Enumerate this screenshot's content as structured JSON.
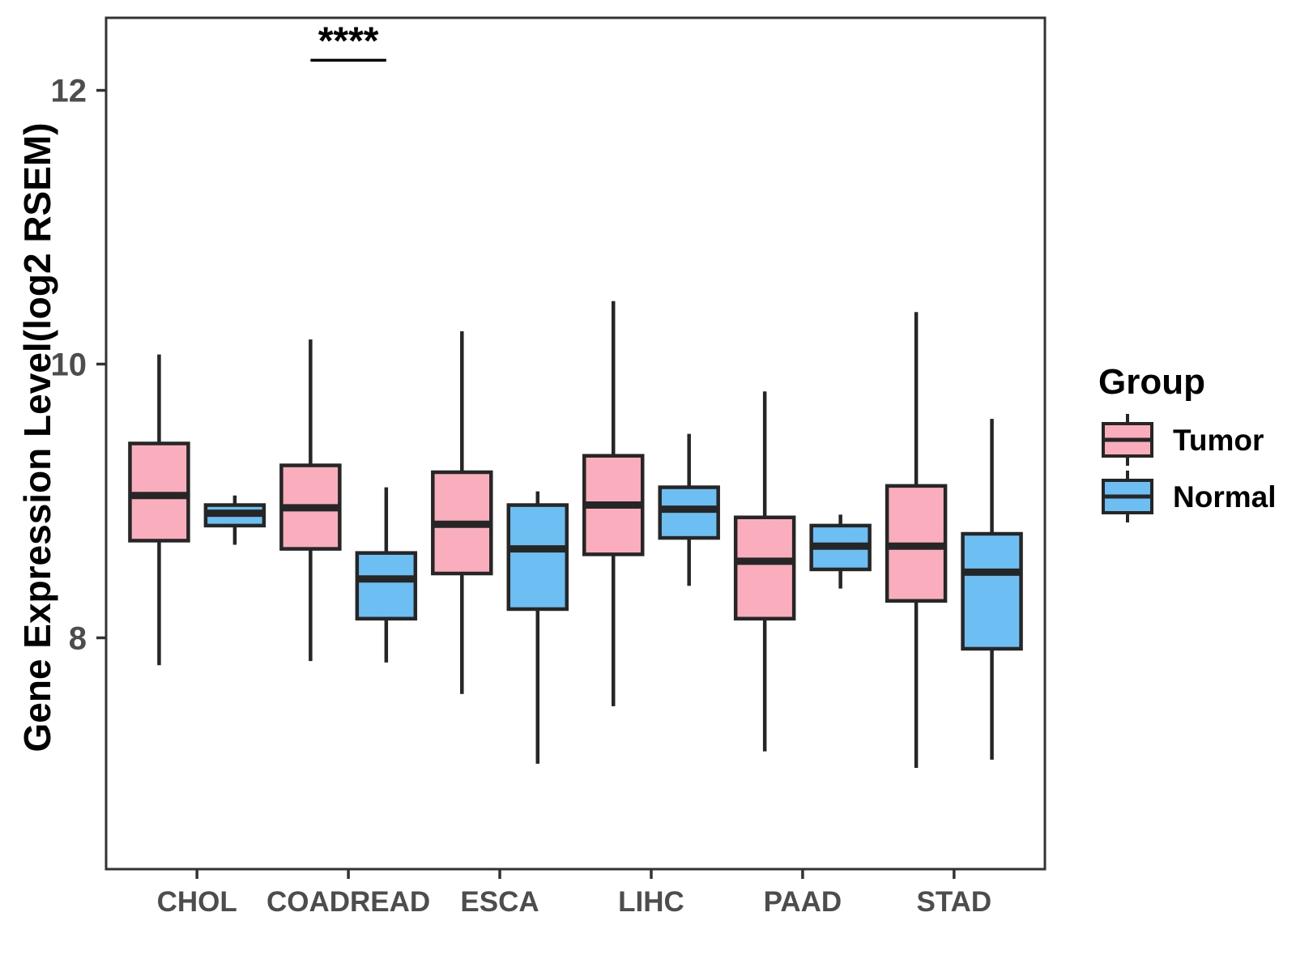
{
  "chart_data": {
    "type": "boxplot",
    "title": "",
    "ylabel": "Gene Expression Level(log2 RSEM)",
    "xlabel": "",
    "legend_title": "Group",
    "legend_position": "right",
    "grid": false,
    "categories": [
      "CHOL",
      "COADREAD",
      "ESCA",
      "LIHC",
      "PAAD",
      "STAD"
    ],
    "yticks": [
      8,
      10,
      12
    ],
    "ylim": [
      6.31,
      12.53
    ],
    "panel_border_color": "#333333",
    "box_line_color": "#262626",
    "series": [
      {
        "name": "Tumor",
        "color": "#FAADBD",
        "boxes": [
          {
            "category": "CHOL",
            "whisker_low": 7.8,
            "q1": 8.71,
            "median": 9.04,
            "q3": 9.42,
            "whisker_high": 10.07
          },
          {
            "category": "COADREAD",
            "whisker_low": 7.83,
            "q1": 8.65,
            "median": 8.95,
            "q3": 9.26,
            "whisker_high": 10.18
          },
          {
            "category": "ESCA",
            "whisker_low": 7.59,
            "q1": 8.47,
            "median": 8.83,
            "q3": 9.21,
            "whisker_high": 10.24
          },
          {
            "category": "LIHC",
            "whisker_low": 7.5,
            "q1": 8.61,
            "median": 8.97,
            "q3": 9.33,
            "whisker_high": 10.46
          },
          {
            "category": "PAAD",
            "whisker_low": 7.17,
            "q1": 8.14,
            "median": 8.56,
            "q3": 8.88,
            "whisker_high": 9.8
          },
          {
            "category": "STAD",
            "whisker_low": 7.05,
            "q1": 8.27,
            "median": 8.67,
            "q3": 9.11,
            "whisker_high": 10.38
          }
        ]
      },
      {
        "name": "Normal",
        "color": "#6DBEF3",
        "boxes": [
          {
            "category": "CHOL",
            "whisker_low": 8.68,
            "q1": 8.82,
            "median": 8.91,
            "q3": 8.97,
            "whisker_high": 9.04
          },
          {
            "category": "COADREAD",
            "whisker_low": 7.82,
            "q1": 8.14,
            "median": 8.43,
            "q3": 8.62,
            "whisker_high": 9.1
          },
          {
            "category": "ESCA",
            "whisker_low": 7.08,
            "q1": 8.21,
            "median": 8.65,
            "q3": 8.97,
            "whisker_high": 9.07
          },
          {
            "category": "LIHC",
            "whisker_low": 8.38,
            "q1": 8.73,
            "median": 8.94,
            "q3": 9.1,
            "whisker_high": 9.49
          },
          {
            "category": "PAAD",
            "whisker_low": 8.36,
            "q1": 8.5,
            "median": 8.67,
            "q3": 8.82,
            "whisker_high": 8.9
          },
          {
            "category": "STAD",
            "whisker_low": 7.11,
            "q1": 7.92,
            "median": 8.48,
            "q3": 8.76,
            "whisker_high": 9.6
          }
        ]
      }
    ],
    "annotations": [
      {
        "text": "****",
        "category": "COADREAD",
        "between": [
          "Tumor",
          "Normal"
        ],
        "y": 12.22
      }
    ]
  }
}
